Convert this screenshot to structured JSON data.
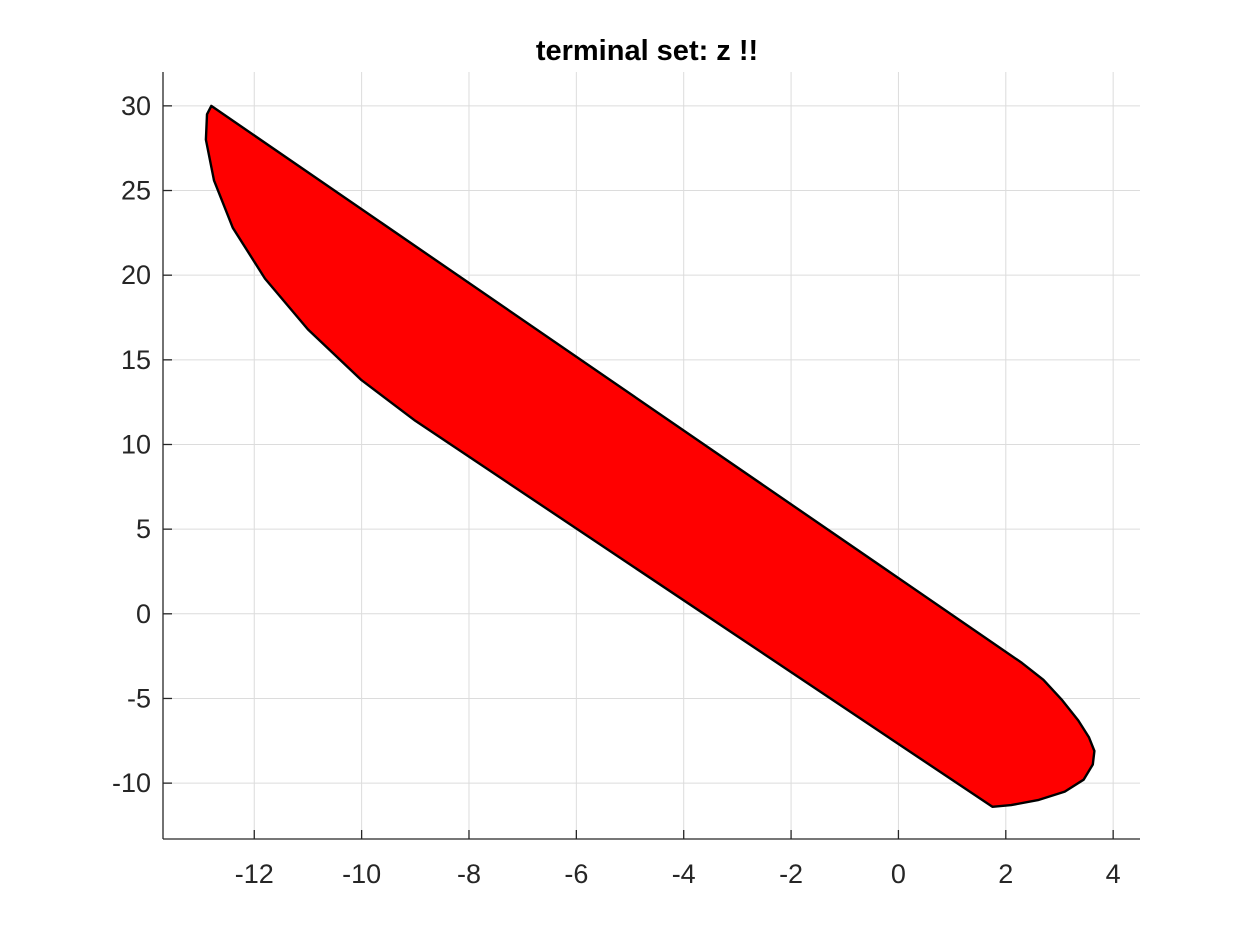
{
  "chart_data": {
    "type": "area",
    "title": "terminal set: z !!",
    "xlabel": "",
    "ylabel": "",
    "xlim": [
      -13.7,
      4.5
    ],
    "ylim": [
      -13.3,
      32
    ],
    "x_ticks": [
      -12,
      -10,
      -8,
      -6,
      -4,
      -2,
      0,
      2,
      4
    ],
    "y_ticks": [
      -10,
      -5,
      0,
      5,
      10,
      15,
      20,
      25,
      30
    ],
    "x_tick_labels": [
      "-12",
      "-10",
      "-8",
      "-6",
      "-4",
      "-2",
      "0",
      "2",
      "4"
    ],
    "y_tick_labels": [
      "-10",
      "-5",
      "0",
      "5",
      "10",
      "15",
      "20",
      "25",
      "30"
    ],
    "grid": true,
    "fill_color": "#ff0000",
    "edge_color": "#000000",
    "series": [
      {
        "shape": "filled-polygon",
        "x": [
          -12.8,
          2.3,
          2.7,
          3.05,
          3.35,
          3.55,
          3.65,
          3.62,
          3.45,
          3.1,
          2.6,
          2.1,
          1.75,
          -9.0,
          -10.0,
          -11.0,
          -11.8,
          -12.4,
          -12.75,
          -12.9,
          -12.88
        ],
        "y": [
          30.0,
          -2.9,
          -3.9,
          -5.1,
          -6.3,
          -7.3,
          -8.1,
          -8.9,
          -9.8,
          -10.5,
          -11.0,
          -11.3,
          -11.4,
          11.4,
          13.8,
          16.8,
          19.8,
          22.8,
          25.6,
          28.0,
          29.5
        ]
      }
    ]
  }
}
